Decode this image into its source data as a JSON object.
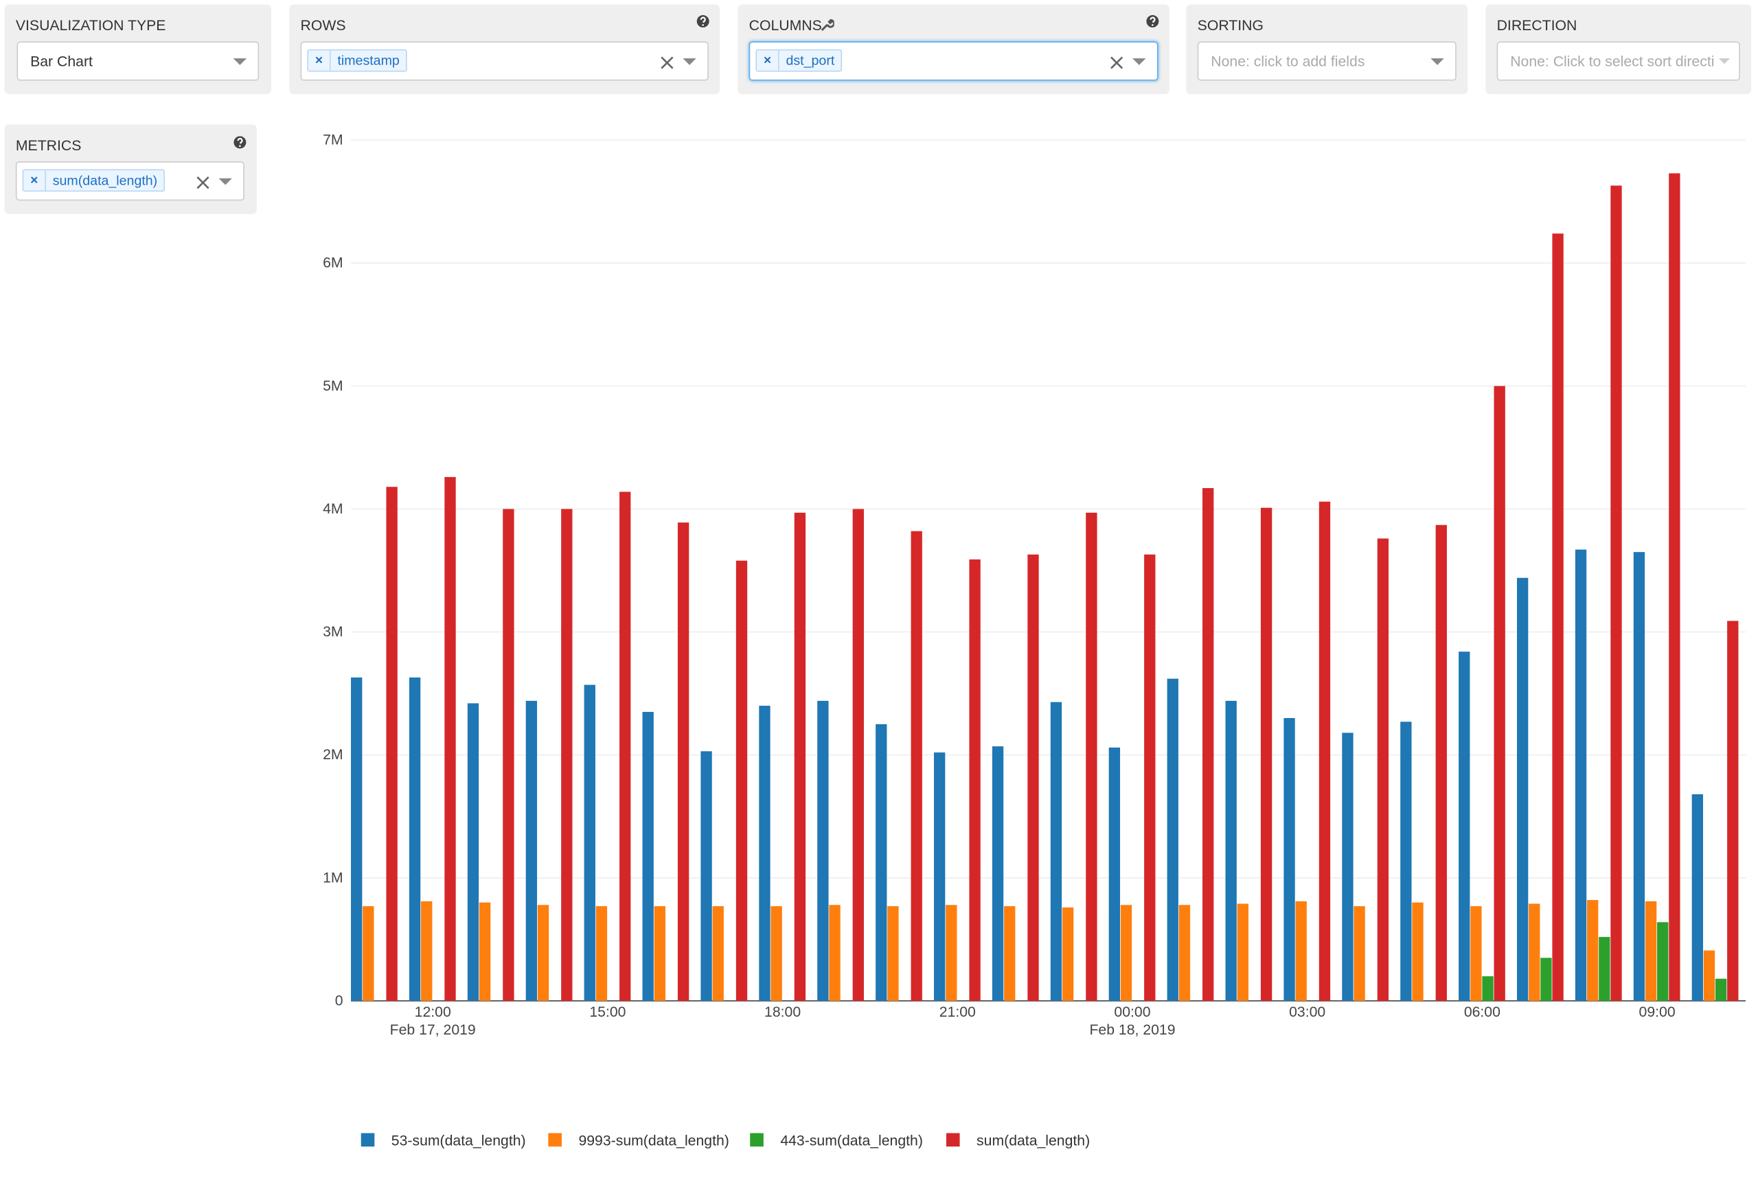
{
  "controls": [
    {
      "label": "VISUALIZATION TYPE",
      "value": "Bar Chart"
    },
    {
      "label": "ROWS",
      "tags": [
        "timestamp"
      ]
    },
    {
      "label": "COLUMNS",
      "tags": [
        "dst_port"
      ]
    },
    {
      "label": "SORTING",
      "placeholder": "None: click to add fields"
    },
    {
      "label": "DIRECTION",
      "placeholder": "None: Click to select sort directi"
    },
    {
      "label": "METRICS",
      "tags": [
        "sum(data_length)"
      ]
    }
  ],
  "chart_data": {
    "type": "bar",
    "categories": [
      null,
      {
        "time": "12:00",
        "date": "Feb 17, 2019"
      },
      null,
      null,
      {
        "time": "15:00"
      },
      null,
      null,
      {
        "time": "18:00"
      },
      null,
      null,
      {
        "time": "21:00"
      },
      null,
      null,
      {
        "time": "00:00",
        "date": "Feb 18, 2019"
      },
      null,
      null,
      {
        "time": "03:00"
      },
      null,
      null,
      {
        "time": "06:00"
      },
      null,
      null,
      {
        "time": "09:00"
      },
      null
    ],
    "series": [
      {
        "name": "53-sum(data_length)",
        "color": "#1f77b4",
        "values": [
          2630000,
          2630000,
          2420000,
          2440000,
          2570000,
          2350000,
          2030000,
          2400000,
          2440000,
          2250000,
          2020000,
          2070000,
          2430000,
          2060000,
          2620000,
          2440000,
          2300000,
          2180000,
          2270000,
          2840000,
          3440000,
          3670000,
          3650000,
          1680000
        ]
      },
      {
        "name": "9993-sum(data_length)",
        "color": "#ff7f0e",
        "values": [
          770000,
          810000,
          800000,
          780000,
          770000,
          770000,
          770000,
          770000,
          780000,
          770000,
          780000,
          770000,
          760000,
          780000,
          780000,
          790000,
          810000,
          770000,
          800000,
          770000,
          790000,
          820000,
          810000,
          410000
        ]
      },
      {
        "name": "443-sum(data_length)",
        "color": "#2ca02c",
        "values": [
          null,
          null,
          null,
          null,
          null,
          null,
          null,
          null,
          null,
          null,
          null,
          null,
          null,
          null,
          null,
          null,
          null,
          null,
          null,
          200000,
          350000,
          520000,
          640000,
          180000
        ]
      },
      {
        "name": "sum(data_length)",
        "color": "#d62728",
        "values": [
          4180000,
          4260000,
          4000000,
          4000000,
          4140000,
          3890000,
          3580000,
          3970000,
          4000000,
          3820000,
          3590000,
          3630000,
          3970000,
          3630000,
          4170000,
          4010000,
          4060000,
          3760000,
          3870000,
          5000000,
          6240000,
          6630000,
          6730000,
          3090000
        ]
      }
    ],
    "ylim": [
      0,
      7000000
    ],
    "yticks": [
      0,
      {
        "value": 1000000,
        "label": "1M"
      },
      {
        "value": 2000000,
        "label": "2M"
      },
      {
        "value": 3000000,
        "label": "3M"
      },
      {
        "value": 4000000,
        "label": "4M"
      },
      {
        "value": 5000000,
        "label": "5M"
      },
      {
        "value": 6000000,
        "label": "6M"
      },
      {
        "value": 7000000,
        "label": "7M"
      }
    ],
    "grid": true
  }
}
